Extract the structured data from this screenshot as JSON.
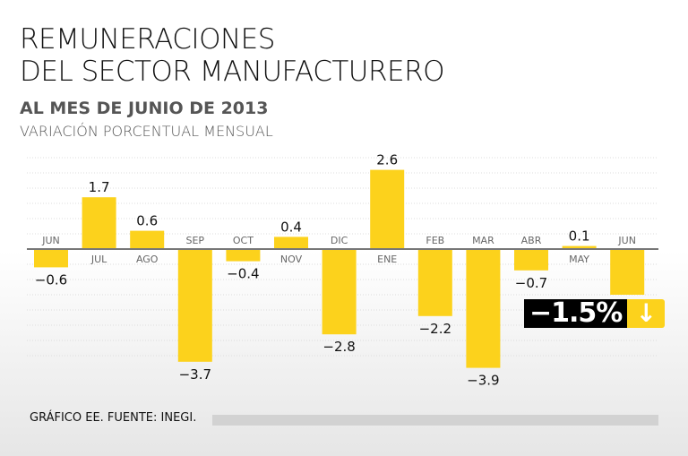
{
  "chart_data": {
    "type": "bar",
    "title": "REMUNERACIONES DEL SECTOR MANUFACTURERO",
    "title_lines": [
      "REMUNERACIONES",
      "DEL SECTOR MANUFACTURERO"
    ],
    "subtitle": "AL MES DE JUNIO DE 2013",
    "ylabel": "VARIACIÓN PORCENTUAL MENSUAL",
    "categories": [
      "JUN",
      "JUL",
      "AGO",
      "SEP",
      "OCT",
      "NOV",
      "DIC",
      "ENE",
      "FEB",
      "MAR",
      "ABR",
      "MAY",
      "JUN"
    ],
    "values": [
      -0.6,
      1.7,
      0.6,
      -3.7,
      -0.4,
      0.4,
      -2.8,
      2.6,
      -2.2,
      -3.9,
      -0.7,
      0.1,
      -1.5
    ],
    "value_labels": [
      "−0.6",
      "1.7",
      "0.6",
      "−3.7",
      "−0.4",
      "0.4",
      "−2.8",
      "2.6",
      "−2.2",
      "−3.9",
      "−0.7",
      "0.1",
      ""
    ],
    "ylim": [
      -4,
      3
    ],
    "grid": true,
    "bar_color": "#fcd21c",
    "highlight": {
      "value": "−1.5%",
      "icon": "arrow-down-icon"
    },
    "source": "GRÁFICO EE. FUENTE: INEGI."
  }
}
